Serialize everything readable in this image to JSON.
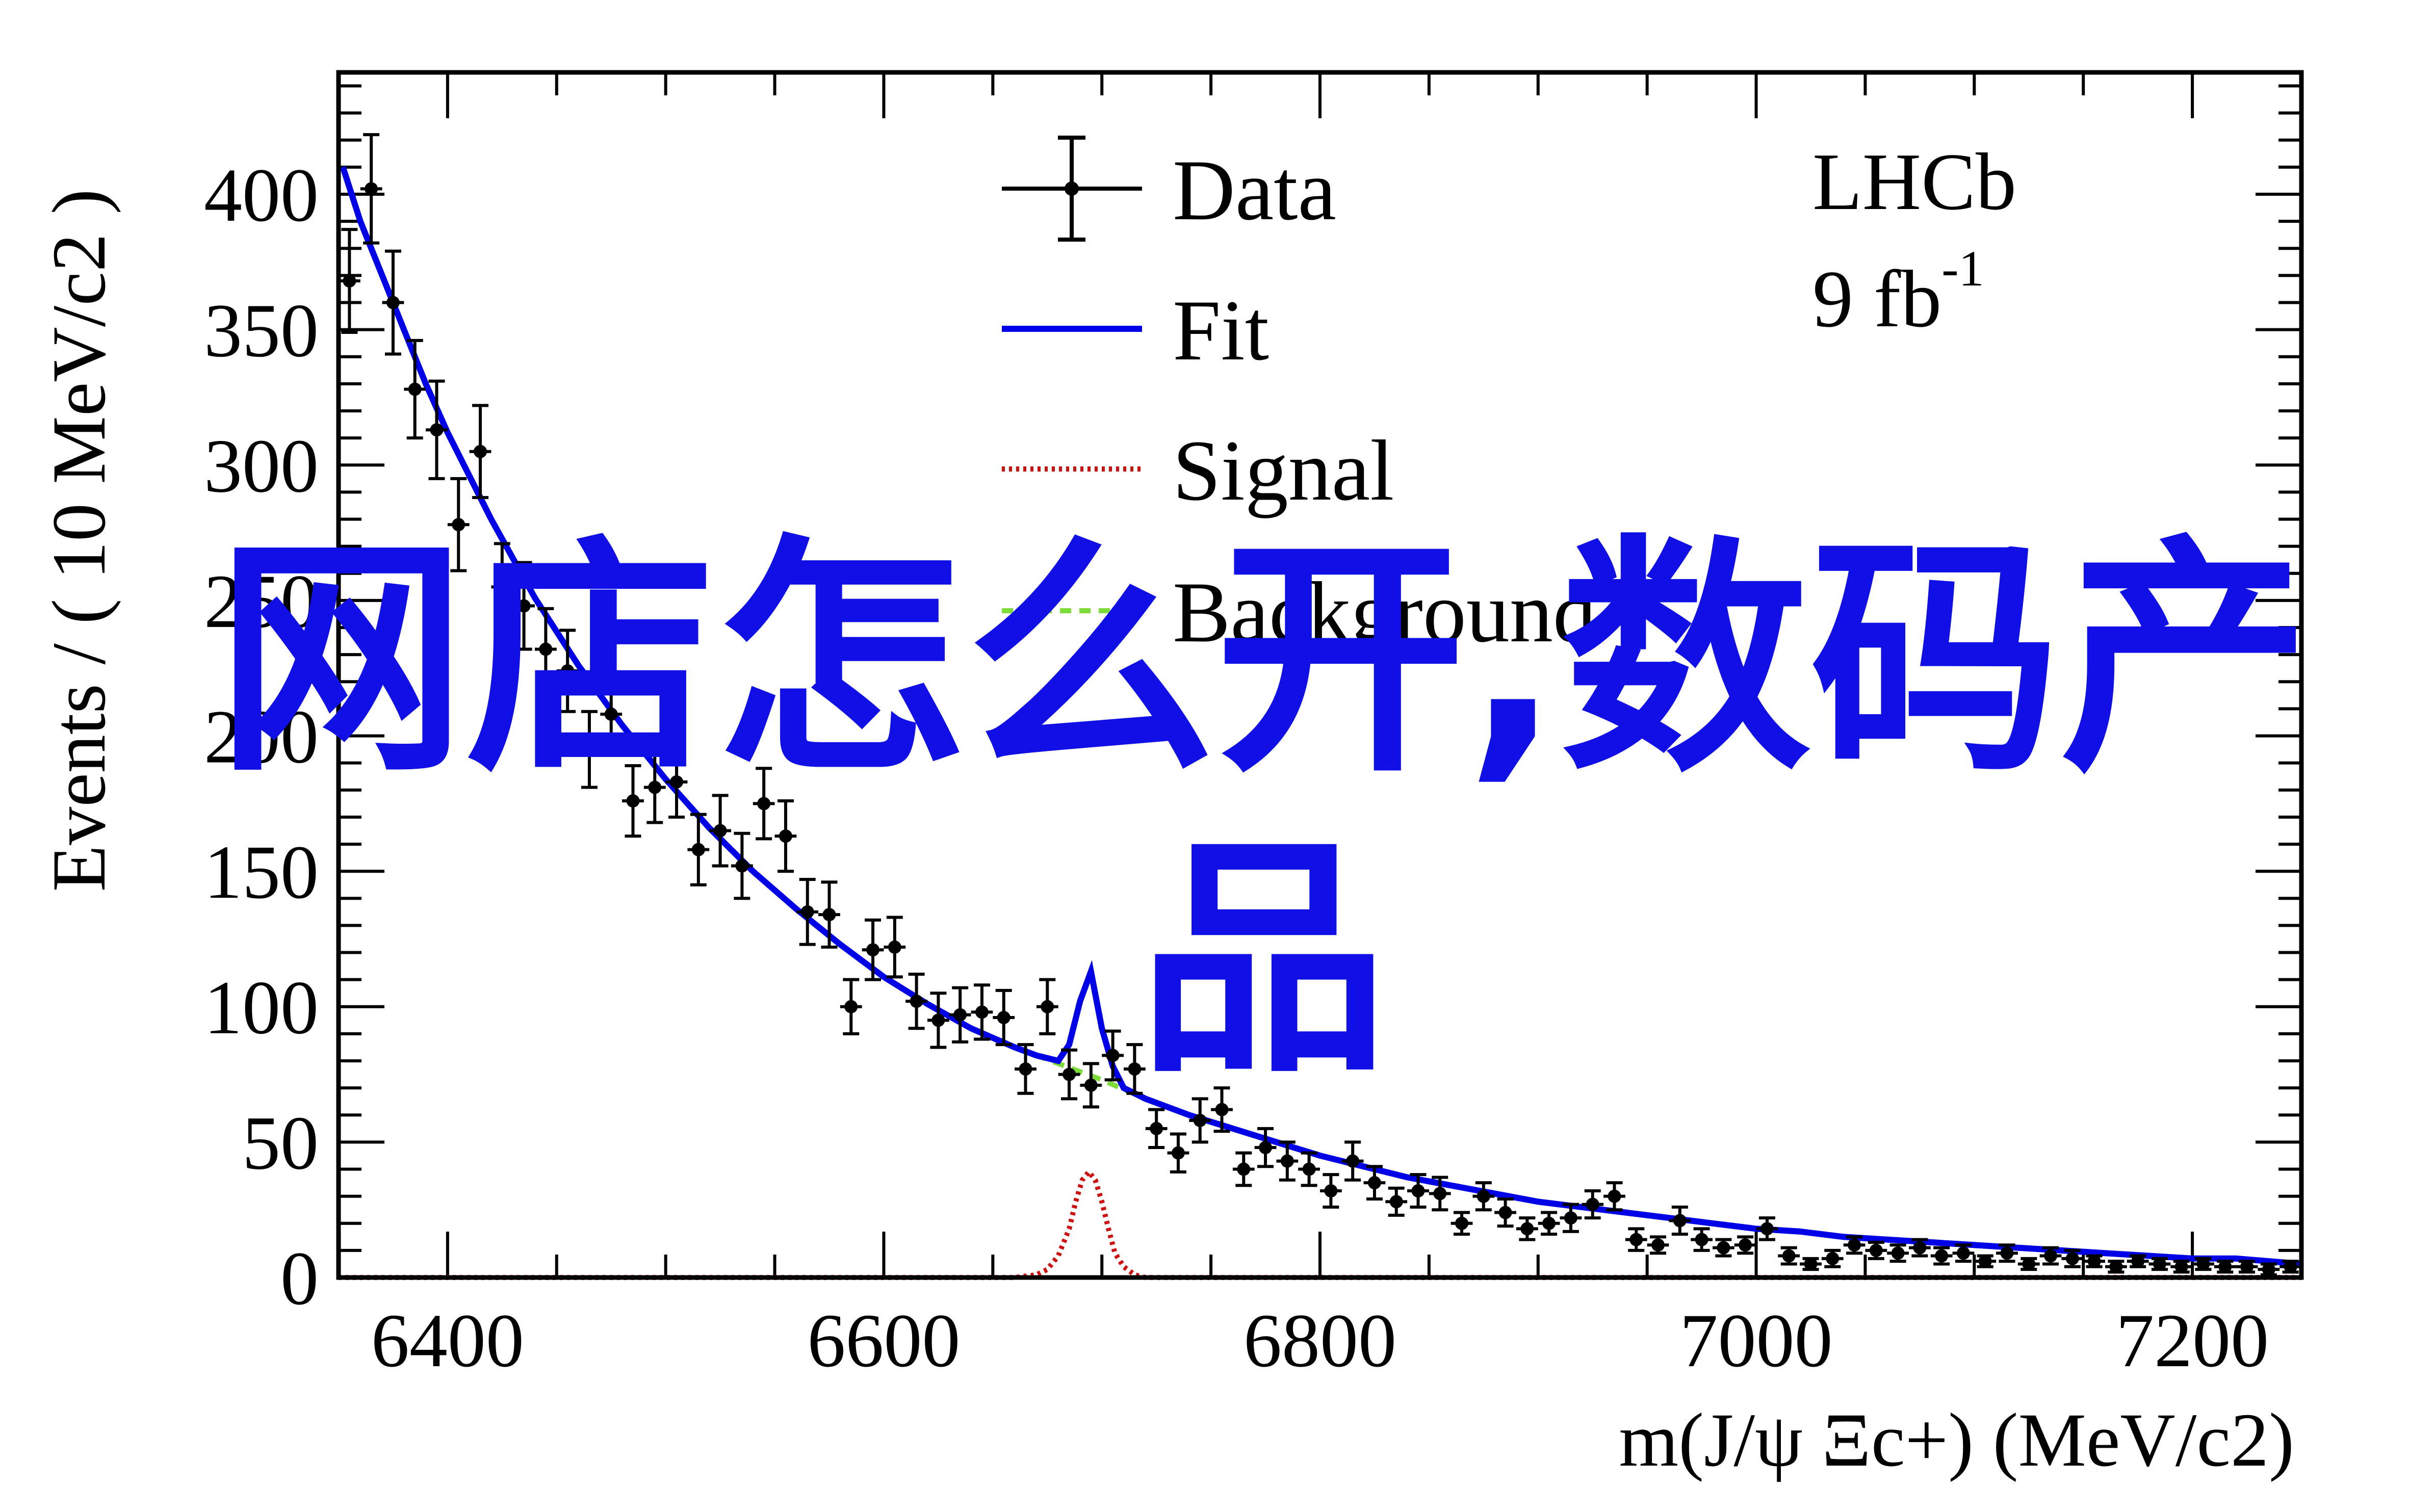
{
  "overlay_text": "网店怎么开,数码产品",
  "colors": {
    "data": "#000000",
    "fit": "#0000e6",
    "signal": "#cc1111",
    "background": "#7ddc3a",
    "overlay": "#1010e6"
  },
  "chart_data": {
    "type": "scatter",
    "title": "",
    "experiment_label": "LHCb",
    "luminosity_label": "9 fb",
    "luminosity_superscript": "-1",
    "xlabel": "m(J/ψ Ξc+) (MeV/c2)",
    "ylabel": "Events / ( 10 MeV/c2 )",
    "xlim": [
      6350,
      7250
    ],
    "ylim": [
      0,
      445
    ],
    "x_ticks": [
      6400,
      6600,
      6800,
      7000,
      7200
    ],
    "y_ticks": [
      0,
      50,
      100,
      150,
      200,
      250,
      300,
      350,
      400
    ],
    "grid": false,
    "legend_position": "top-center",
    "legend": [
      "Data",
      "Fit",
      "Signal",
      "Background"
    ],
    "series": [
      {
        "name": "Data",
        "kind": "points",
        "bin_width": 10,
        "x": [
          6355,
          6365,
          6375,
          6385,
          6395,
          6405,
          6415,
          6425,
          6435,
          6445,
          6455,
          6465,
          6475,
          6485,
          6495,
          6505,
          6515,
          6525,
          6535,
          6545,
          6555,
          6565,
          6575,
          6585,
          6595,
          6605,
          6615,
          6625,
          6635,
          6645,
          6655,
          6665,
          6675,
          6685,
          6695,
          6705,
          6715,
          6725,
          6735,
          6745,
          6755,
          6765,
          6775,
          6785,
          6795,
          6805,
          6815,
          6825,
          6835,
          6845,
          6855,
          6865,
          6875,
          6885,
          6895,
          6905,
          6915,
          6925,
          6935,
          6945,
          6955,
          6965,
          6975,
          6985,
          6995,
          7005,
          7015,
          7025,
          7035,
          7045,
          7055,
          7065,
          7075,
          7085,
          7095,
          7105,
          7115,
          7125,
          7135,
          7145,
          7155,
          7165,
          7175,
          7185,
          7195,
          7205,
          7215,
          7225,
          7235,
          7245
        ],
        "y": [
          368,
          402,
          360,
          328,
          313,
          278,
          305,
          255,
          248,
          232,
          224,
          195,
          208,
          176,
          181,
          183,
          158,
          165,
          152,
          175,
          163,
          135,
          134,
          100,
          121,
          122,
          102,
          95,
          97,
          98,
          96,
          77,
          100,
          75,
          71,
          82,
          77,
          55,
          46,
          58,
          62,
          40,
          48,
          43,
          40,
          32,
          43,
          35,
          28,
          32,
          31,
          20,
          30,
          24,
          18,
          20,
          22,
          27,
          30,
          14,
          12,
          21,
          14,
          11,
          12,
          18,
          8,
          5,
          7,
          12,
          10,
          9,
          11,
          8,
          9,
          6,
          9,
          5,
          8,
          7,
          6,
          4,
          6,
          5,
          4,
          5,
          4,
          4,
          3,
          4
        ],
        "y_err": [
          19,
          20,
          19,
          18,
          18,
          17,
          17,
          16,
          16,
          15,
          15,
          14,
          14,
          13,
          13,
          13,
          13,
          13,
          12,
          13,
          13,
          12,
          12,
          10,
          11,
          11,
          10,
          10,
          10,
          10,
          10,
          9,
          10,
          9,
          8,
          9,
          9,
          7,
          7,
          8,
          8,
          6,
          7,
          7,
          6,
          6,
          7,
          6,
          5,
          6,
          6,
          4,
          5,
          5,
          4,
          4,
          5,
          5,
          5,
          4,
          3,
          5,
          4,
          3,
          3,
          4,
          3,
          2,
          3,
          3,
          3,
          3,
          3,
          3,
          3,
          2,
          3,
          2,
          3,
          3,
          2,
          2,
          2,
          2,
          2,
          2,
          2,
          2,
          2,
          2
        ]
      },
      {
        "name": "Fit",
        "kind": "line",
        "x": [
          6352,
          6360,
          6370,
          6380,
          6390,
          6400,
          6420,
          6440,
          6460,
          6480,
          6500,
          6520,
          6540,
          6560,
          6580,
          6600,
          6620,
          6640,
          6660,
          6670,
          6680,
          6685,
          6690,
          6695,
          6700,
          6705,
          6710,
          6720,
          6740,
          6760,
          6780,
          6800,
          6820,
          6840,
          6860,
          6880,
          6900,
          6920,
          6940,
          6960,
          6980,
          7000,
          7020,
          7040,
          7060,
          7080,
          7100,
          7120,
          7140,
          7160,
          7180,
          7200,
          7220,
          7250
        ],
        "y": [
          410,
          390,
          370,
          350,
          330,
          312,
          280,
          251,
          226,
          204,
          184,
          166,
          150,
          136,
          123,
          111,
          101,
          92,
          85,
          82,
          80,
          86,
          102,
          113,
          92,
          78,
          70,
          66,
          60,
          55,
          50,
          45,
          41,
          37,
          34,
          31,
          28,
          26,
          24,
          22,
          20,
          18,
          17,
          15,
          14,
          13,
          12,
          11,
          10,
          9,
          8,
          7,
          7,
          5
        ]
      },
      {
        "name": "Signal",
        "kind": "line",
        "x": [
          6350,
          6660,
          6670,
          6675,
          6680,
          6685,
          6688,
          6691,
          6694,
          6697,
          6700,
          6703,
          6706,
          6710,
          6715,
          6720,
          6730,
          7250
        ],
        "y": [
          0,
          0,
          1,
          3,
          8,
          18,
          28,
          36,
          39,
          36,
          28,
          18,
          9,
          4,
          1,
          0,
          0,
          0
        ]
      },
      {
        "name": "Background",
        "kind": "line",
        "x": [
          6352,
          6360,
          6370,
          6380,
          6390,
          6400,
          6420,
          6440,
          6460,
          6480,
          6500,
          6520,
          6540,
          6560,
          6580,
          6600,
          6620,
          6640,
          6660,
          6680,
          6700,
          6720,
          6740,
          6760,
          6780,
          6800,
          6820,
          6840,
          6860,
          6880,
          6900,
          6920,
          6940,
          6960,
          6980,
          7000,
          7020,
          7040,
          7060,
          7080,
          7100,
          7120,
          7140,
          7160,
          7180,
          7200,
          7220,
          7250
        ],
        "y": [
          410,
          390,
          370,
          350,
          330,
          312,
          280,
          251,
          226,
          204,
          184,
          166,
          150,
          136,
          123,
          111,
          101,
          92,
          85,
          79,
          73,
          66,
          60,
          55,
          50,
          45,
          41,
          37,
          34,
          31,
          28,
          26,
          24,
          22,
          20,
          18,
          17,
          15,
          14,
          13,
          12,
          11,
          10,
          9,
          8,
          7,
          7,
          5
        ]
      }
    ]
  }
}
